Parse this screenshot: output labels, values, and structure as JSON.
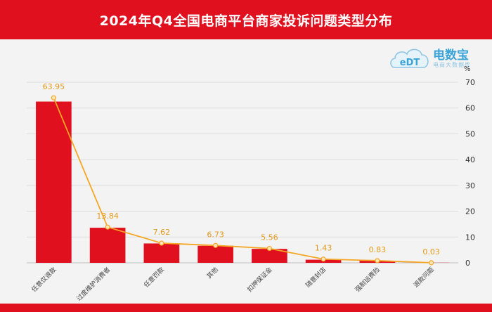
{
  "header": {
    "title": "2024年Q4全国电商平台商家投诉问题类型分布"
  },
  "logo": {
    "mark": "eDT",
    "brand": "电数宝",
    "sub": "电商大数据库"
  },
  "colors": {
    "bar": "#e0101f",
    "line": "#f5a623",
    "header": "#e0101f",
    "label": "#e39a1b"
  },
  "chart_data": {
    "type": "bar",
    "title": "2024年Q4全国电商平台商家投诉问题类型分布",
    "unit": "%",
    "categories": [
      "任意仅退款",
      "过度维护消费者",
      "任意罚款",
      "其他",
      "扣押保证金",
      "随意封店",
      "强制运费险",
      "退款问题"
    ],
    "series": [
      {
        "type": "bar",
        "values": [
          62.5,
          13.6,
          7.5,
          6.6,
          5.4,
          1.2,
          0.8,
          0.05
        ]
      },
      {
        "type": "line",
        "values": [
          63.95,
          13.84,
          7.62,
          6.73,
          5.56,
          1.43,
          0.83,
          0.03
        ]
      }
    ],
    "data_labels": [
      "63.95",
      "13.84",
      "7.62",
      "6.73",
      "5.56",
      "1.43",
      "0.83",
      "0.03"
    ],
    "yaxis_ticks": [
      "0",
      "10",
      "20",
      "30",
      "40",
      "50",
      "60",
      "70"
    ],
    "ylim": [
      0,
      70
    ],
    "grid": true,
    "yaxis_position": "right"
  }
}
